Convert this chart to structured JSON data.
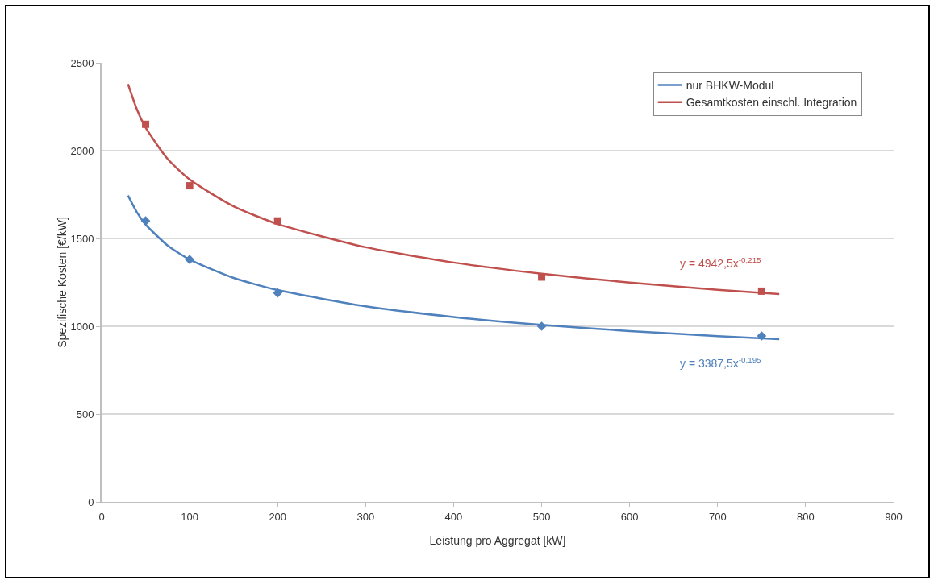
{
  "chart_data": {
    "type": "scatter",
    "xlabel": "Leistung pro Aggregat [kW]",
    "ylabel": "Spezifische Kosten [€/kW]",
    "xlim": [
      0,
      900
    ],
    "xticks": [
      0,
      100,
      200,
      300,
      400,
      500,
      600,
      700,
      800,
      900
    ],
    "ylim": [
      0,
      2500
    ],
    "yticks": [
      0,
      500,
      1000,
      1500,
      2000,
      2500
    ],
    "grid": "y",
    "legend": "top right",
    "series": [
      {
        "type": "line",
        "name": "nur BHKW-Modul",
        "color": "#4f81bd",
        "marker": "none",
        "line_style": "solid",
        "x": [
          30,
          40,
          50,
          75,
          100,
          150,
          200,
          300,
          400,
          500,
          600,
          700,
          770
        ],
        "values": [
          1745,
          1650,
          1580,
          1460,
          1380,
          1275,
          1206,
          1114,
          1053,
          1008,
          973,
          944,
          927
        ]
      },
      {
        "type": "line",
        "name": "Gesamtkosten einschl. Integration",
        "color": "#c0504d",
        "marker": "none",
        "line_style": "solid",
        "x": [
          30,
          40,
          50,
          75,
          100,
          150,
          200,
          300,
          400,
          500,
          600,
          700,
          770
        ],
        "values": [
          2379,
          2236,
          2131,
          1953,
          1836,
          1683,
          1582,
          1450,
          1363,
          1299,
          1249,
          1208,
          1184
        ]
      },
      {
        "color": "#4f81bd",
        "marker": "diamond",
        "x": [
          50,
          100,
          200,
          500,
          750
        ],
        "values": [
          1600,
          1380,
          1190,
          1000,
          945
        ]
      },
      {
        "color": "#c0504d",
        "marker": "square",
        "x": [
          50,
          100,
          200,
          500,
          750
        ],
        "values": [
          2150,
          1800,
          1600,
          1280,
          1200
        ]
      }
    ],
    "annotations": [
      "y = 3387,5x$^{-0,195}$",
      "y = 4942,5x$^{-0,215}$"
    ]
  }
}
